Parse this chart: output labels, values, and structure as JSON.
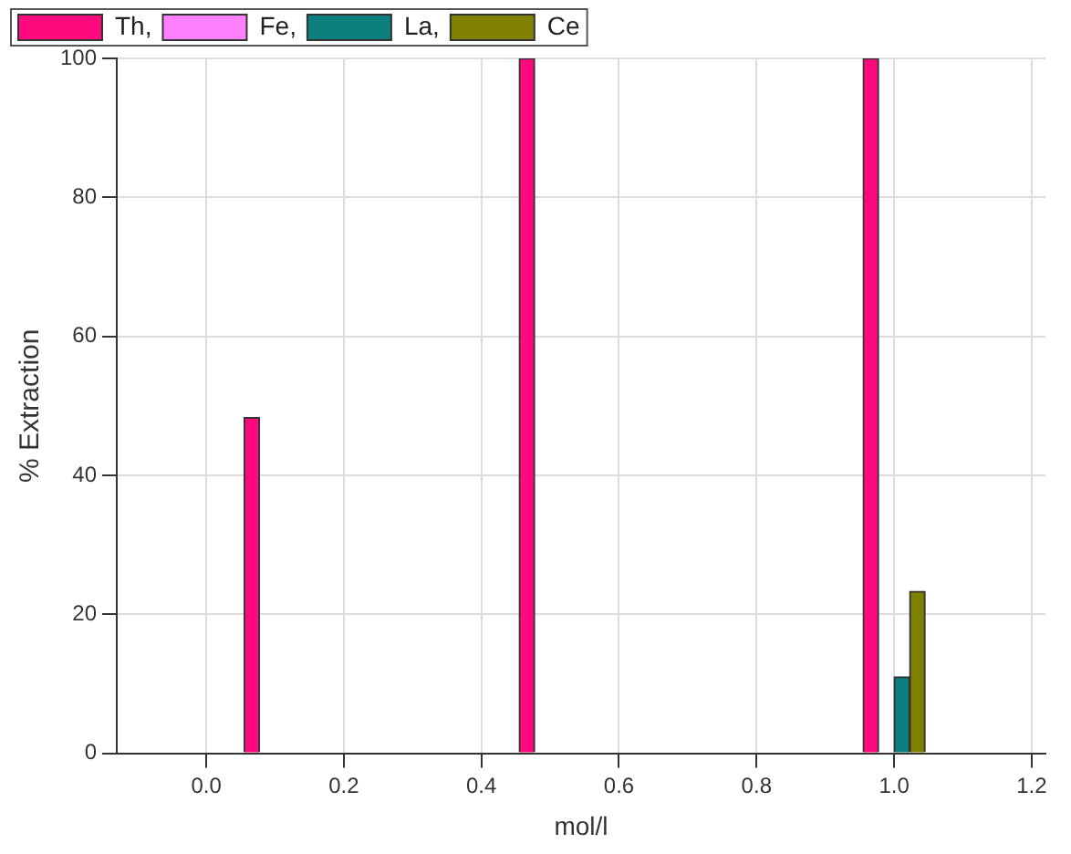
{
  "chart_data": {
    "type": "bar",
    "xlabel": "mol/l",
    "ylabel": "% Extraction",
    "x": [
      0.1,
      0.5,
      1.0
    ],
    "series": [
      {
        "name": "Th,",
        "color": "#ff0a7e",
        "values": [
          48.3,
          100,
          100
        ]
      },
      {
        "name": "Fe,",
        "color": "#ff80ff",
        "values": [
          0,
          0,
          0
        ]
      },
      {
        "name": "La,",
        "color": "#0d7f7f",
        "values": [
          0,
          0,
          11
        ]
      },
      {
        "name": "Ce",
        "color": "#808000",
        "values": [
          0,
          0,
          23.3
        ]
      }
    ],
    "xlim": [
      -0.13,
      1.22
    ],
    "xticks": [
      {
        "value": 0,
        "label": "0.0"
      },
      0.2,
      0.4,
      0.6,
      0.8,
      {
        "value": 1,
        "label": "1.0"
      },
      1.2
    ],
    "ylim": [
      0,
      100
    ],
    "yticks": [
      0,
      20,
      40,
      60,
      80,
      100
    ],
    "grid": true,
    "legend": "top left"
  }
}
